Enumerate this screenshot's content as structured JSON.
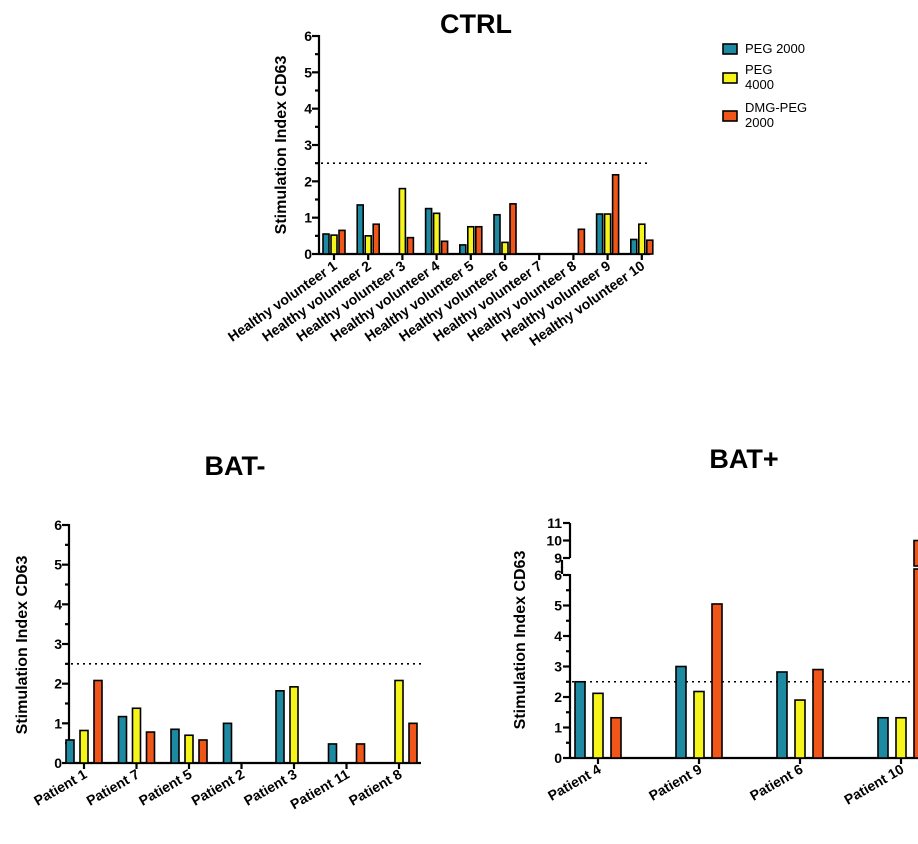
{
  "colors": {
    "PEG 2000": "#1d8aa1",
    "PEG 4000": "#f5f51c",
    "DMG-PEG 2000": "#f0551a"
  },
  "legend": {
    "items": [
      {
        "lines": [
          "PEG 2000"
        ],
        "color_key": "PEG 2000"
      },
      {
        "lines": [
          "PEG",
          "4000"
        ],
        "color_key": "PEG 4000"
      },
      {
        "lines": [
          "DMG-PEG",
          "2000"
        ],
        "color_key": "DMG-PEG 2000"
      }
    ]
  },
  "chart_data": [
    {
      "id": "ctrl",
      "type": "bar",
      "title": "CTRL",
      "ylabel": "Stimulation Index CD63",
      "ylim": [
        0,
        6
      ],
      "yticks": [
        0,
        1,
        2,
        3,
        4,
        5,
        6
      ],
      "threshold": 2.5,
      "categories": [
        "Healthy volunteer 1",
        "Healthy volunteer 2",
        "Healthy volunteer 3",
        "Healthy volunteer 4",
        "Healthy volunteer 5",
        "Healthy volunteer 6",
        "Healthy volunteer 7",
        "Healthy volunteer 8",
        "Healthy volunteer 9",
        "Healthy volunteer 10"
      ],
      "series": [
        {
          "name": "PEG 2000",
          "values": [
            0.55,
            1.35,
            null,
            1.25,
            0.25,
            1.08,
            null,
            null,
            1.1,
            0.4
          ]
        },
        {
          "name": "PEG 4000",
          "values": [
            0.52,
            0.5,
            1.8,
            1.12,
            0.75,
            0.32,
            null,
            null,
            1.1,
            0.82
          ]
        },
        {
          "name": "DMG-PEG 2000",
          "values": [
            0.65,
            0.82,
            0.45,
            0.35,
            0.75,
            1.38,
            null,
            0.68,
            2.18,
            0.38
          ]
        }
      ]
    },
    {
      "id": "batneg",
      "type": "bar",
      "title": "BAT-",
      "ylabel": "Stimulation Index CD63",
      "ylim": [
        0,
        6
      ],
      "yticks": [
        0,
        1,
        2,
        3,
        4,
        5,
        6
      ],
      "threshold": 2.5,
      "categories": [
        "Patient 1",
        "Patient 7",
        "Patient 5",
        "Patient 2",
        "Patient 3",
        "Patient 11",
        "Patient 8"
      ],
      "series": [
        {
          "name": "PEG 2000",
          "values": [
            0.58,
            1.17,
            0.85,
            1.0,
            1.82,
            0.48,
            null
          ]
        },
        {
          "name": "PEG 4000",
          "values": [
            0.82,
            1.38,
            0.7,
            null,
            1.92,
            null,
            2.08
          ]
        },
        {
          "name": "DMG-PEG 2000",
          "values": [
            2.08,
            0.78,
            0.58,
            null,
            null,
            0.48,
            1.0
          ]
        }
      ]
    },
    {
      "id": "batpos",
      "type": "bar",
      "title": "BAT+",
      "ylabel": "Stimulation Index CD63",
      "ylim": [
        0,
        11
      ],
      "yticks": [
        0,
        1,
        2,
        3,
        4,
        5,
        6,
        9,
        10,
        11
      ],
      "axis_break": [
        6,
        9
      ],
      "threshold": 2.5,
      "categories": [
        "Patient 4",
        "Patient 9",
        "Patient 6",
        "Patient 10"
      ],
      "series": [
        {
          "name": "PEG 2000",
          "values": [
            2.5,
            3.0,
            2.82,
            1.32
          ]
        },
        {
          "name": "PEG 4000",
          "values": [
            2.12,
            2.18,
            1.9,
            1.32
          ]
        },
        {
          "name": "DMG-PEG 2000",
          "values": [
            1.32,
            5.05,
            2.9,
            10.0
          ]
        }
      ]
    }
  ]
}
